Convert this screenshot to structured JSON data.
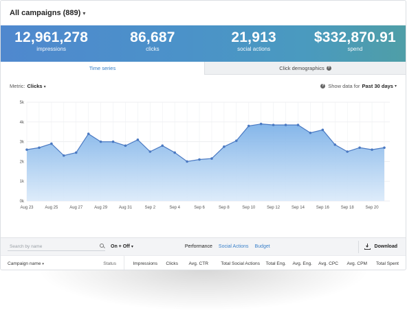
{
  "header": {
    "title": "All campaigns (889)"
  },
  "stats": [
    {
      "value": "12,961,278",
      "label": "impressions"
    },
    {
      "value": "86,687",
      "label": "clicks"
    },
    {
      "value": "21,913",
      "label": "social actions"
    },
    {
      "value": "$332,870.91",
      "label": "spend"
    }
  ],
  "tabs": {
    "time_series": "Time series",
    "click_demographics": "Click demographics"
  },
  "metric": {
    "label": "Metric:",
    "value": "Clicks"
  },
  "range": {
    "label": "Show data for",
    "value": "Past 30 days"
  },
  "chart_data": {
    "type": "area",
    "y_ticks": [
      "0k",
      "1k",
      "2k",
      "3k",
      "4k",
      "5k"
    ],
    "x_tick_labels": [
      "Aug 23",
      "Aug 25",
      "Aug 27",
      "Aug 29",
      "Aug 31",
      "Sep 2",
      "Sep 4",
      "Sep 6",
      "Sep 8",
      "Sep 10",
      "Sep 12",
      "Sep 14",
      "Sep 16",
      "Sep 18",
      "Sep 20"
    ],
    "x": [
      "Aug 23",
      "Aug 24",
      "Aug 25",
      "Aug 26",
      "Aug 27",
      "Aug 28",
      "Aug 29",
      "Aug 30",
      "Aug 31",
      "Sep 1",
      "Sep 2",
      "Sep 3",
      "Sep 4",
      "Sep 5",
      "Sep 6",
      "Sep 7",
      "Sep 8",
      "Sep 9",
      "Sep 10",
      "Sep 11",
      "Sep 12",
      "Sep 13",
      "Sep 14",
      "Sep 15",
      "Sep 16",
      "Sep 17",
      "Sep 18",
      "Sep 19",
      "Sep 20",
      "Sep 21"
    ],
    "values": [
      2600,
      2700,
      2900,
      2300,
      2450,
      3400,
      3000,
      3000,
      2800,
      3100,
      2500,
      2800,
      2450,
      2000,
      2100,
      2150,
      2750,
      3050,
      3800,
      3900,
      3850,
      3850,
      3850,
      3450,
      3600,
      2850,
      2500,
      2700,
      2600,
      2700
    ],
    "ylim": [
      0,
      5000
    ],
    "grid": true,
    "colors": {
      "line": "#4a79c2",
      "area_top": "#7eb2e8",
      "area_bottom": "#dcebfa"
    }
  },
  "toolbar": {
    "search_placeholder": "Search by name",
    "filter": "On + Off",
    "views": [
      "Performance",
      "Social Actions",
      "Budget"
    ],
    "download": "Download"
  },
  "table": {
    "columns": [
      "Campaign name",
      "Status",
      "Impressions",
      "Clicks",
      "Avg. CTR",
      "Total Social Actions",
      "Total Eng.",
      "Avg. Eng.",
      "Avg. CPC",
      "Avg. CPM",
      "Total Spent"
    ]
  }
}
